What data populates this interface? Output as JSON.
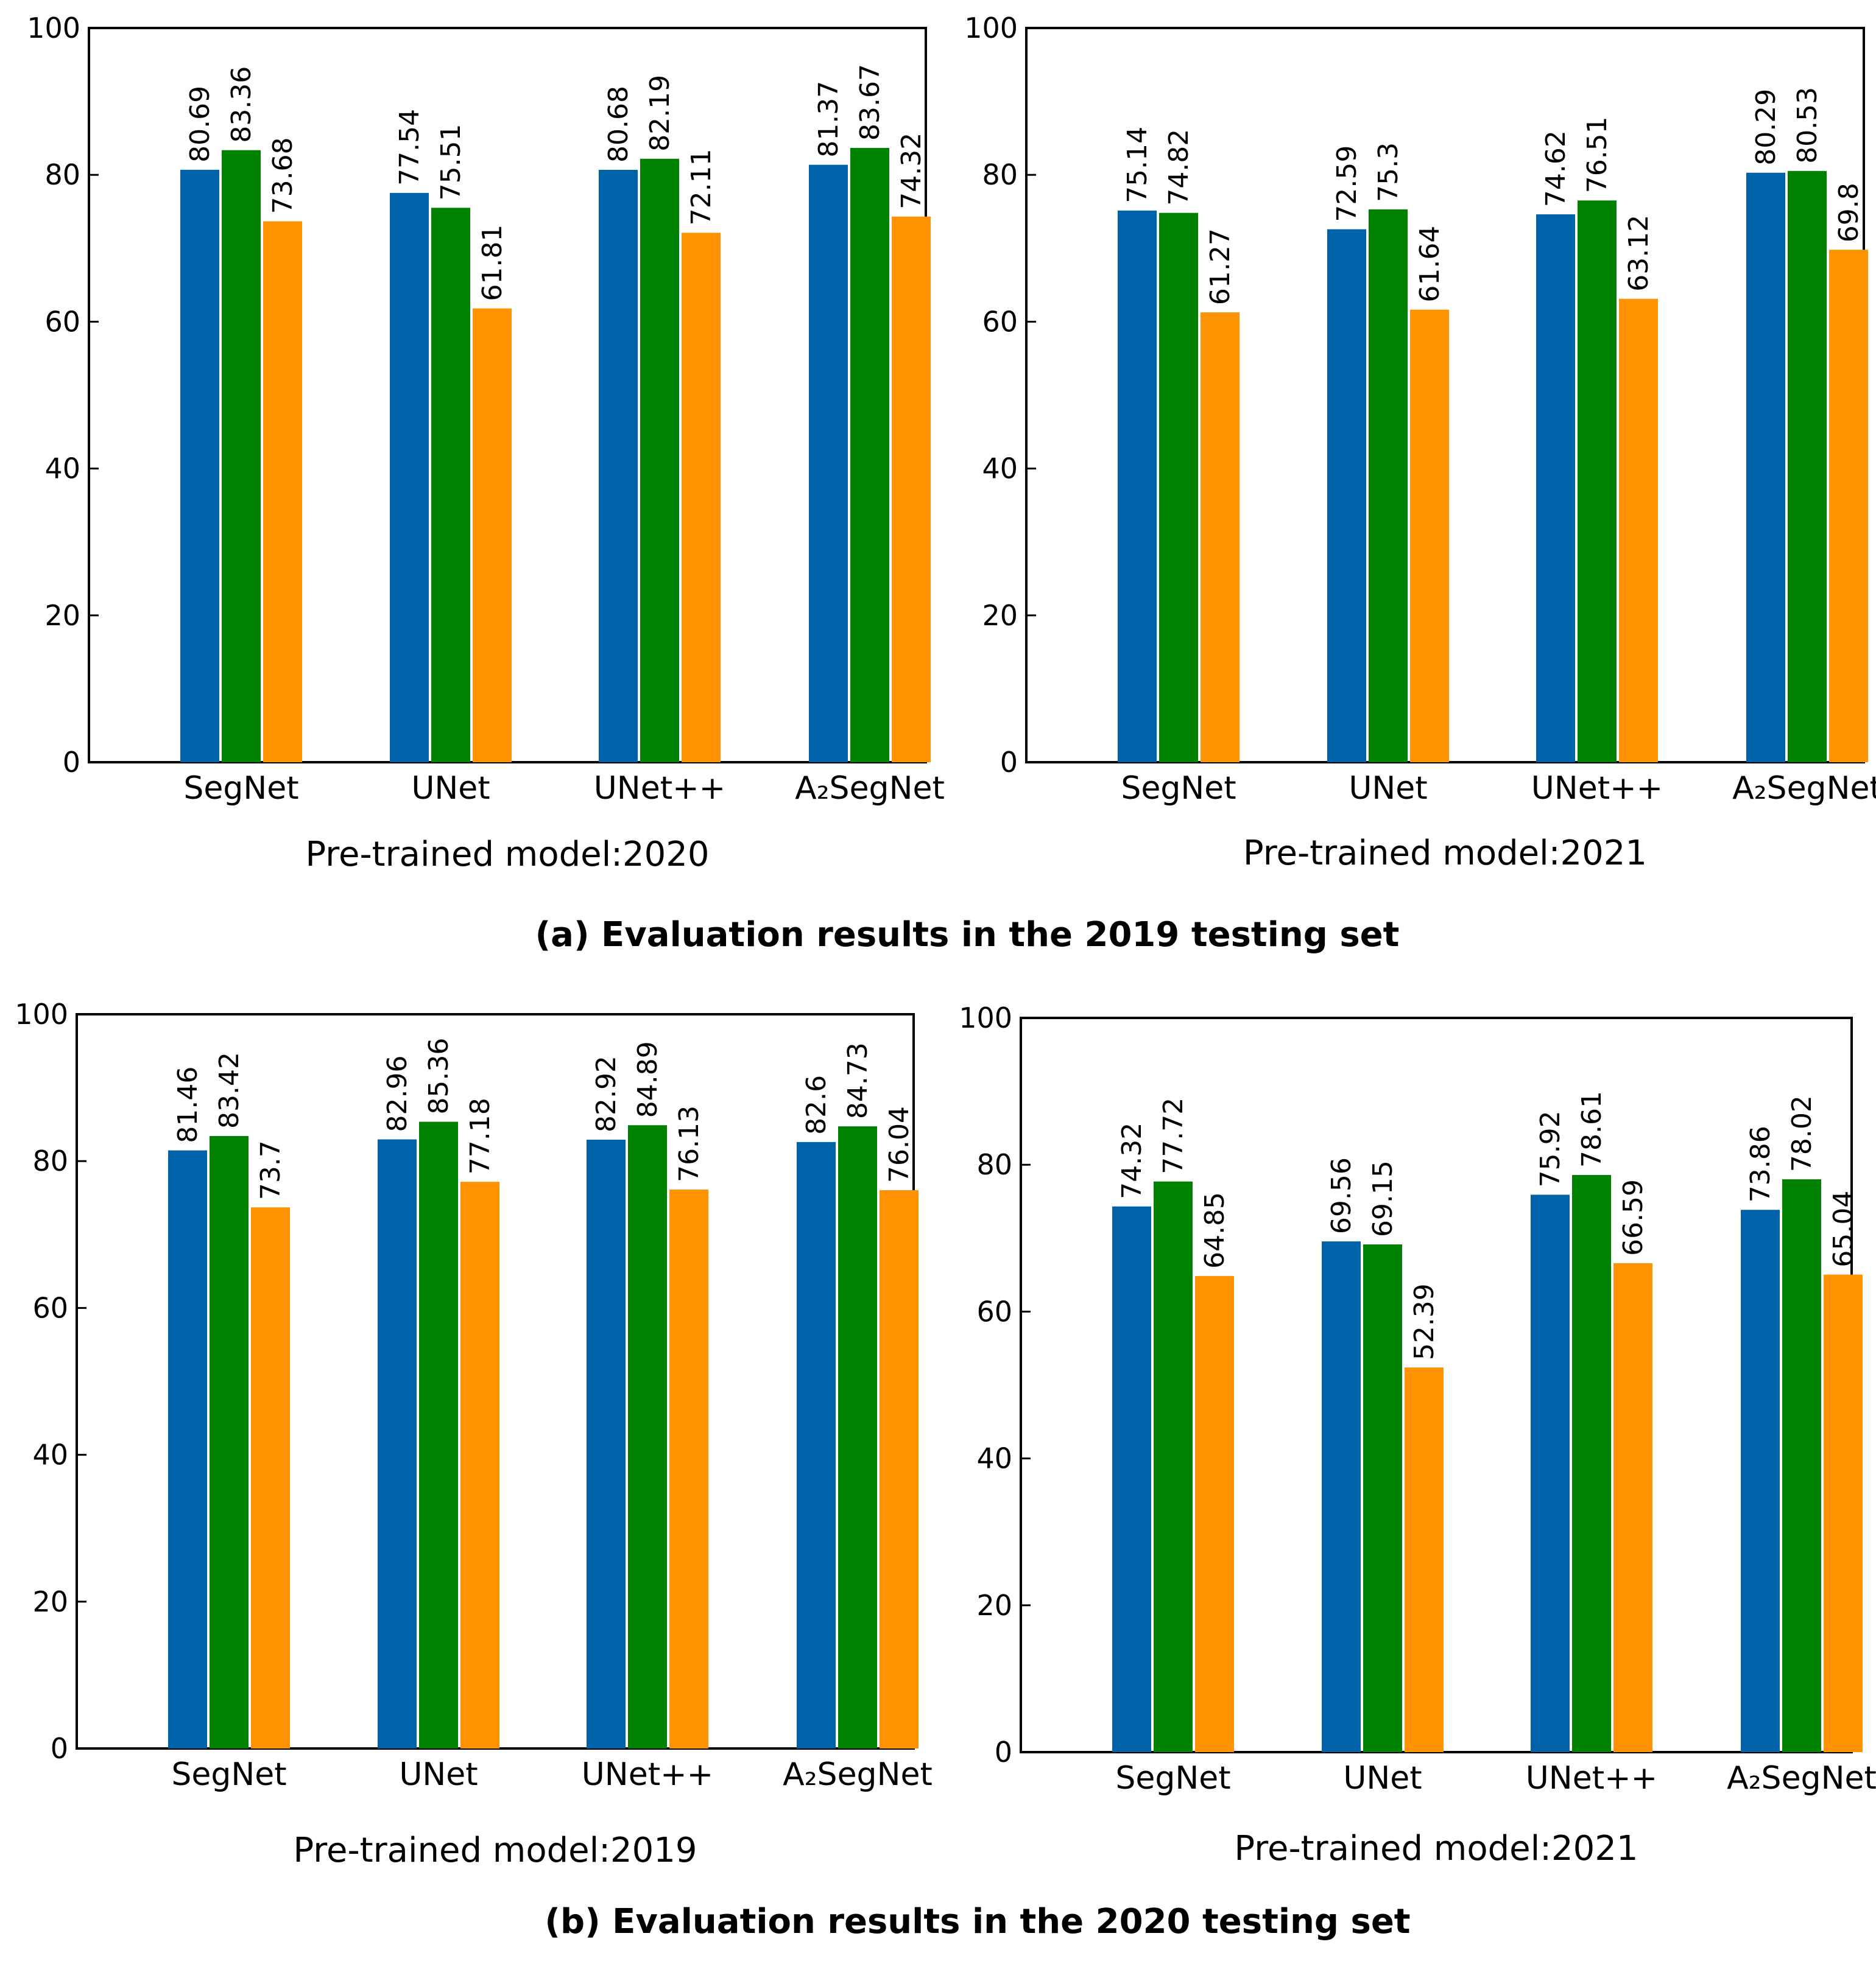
{
  "colors": {
    "series1": "#0062a8",
    "series2": "#008100",
    "series3": "#ff9200"
  },
  "captions": {
    "a": "(a) Evaluation results in the 2019 testing set",
    "b": "(b) Evaluation results in the 2020 testing set"
  },
  "chart_data": [
    {
      "type": "bar",
      "title": "Pre-trained model:2020",
      "categories": [
        "SegNet",
        "UNet",
        "UNet++",
        "A₂SegNet"
      ],
      "series": [
        {
          "name": "series 1",
          "values": [
            80.69,
            77.54,
            80.68,
            81.37
          ]
        },
        {
          "name": "series 2",
          "values": [
            83.36,
            75.51,
            82.19,
            83.67
          ]
        },
        {
          "name": "series 3",
          "values": [
            73.68,
            61.81,
            72.11,
            74.32
          ]
        }
      ],
      "ylim": [
        0,
        100
      ],
      "yticks": [
        "0",
        "20",
        "40",
        "60",
        "80",
        "100"
      ]
    },
    {
      "type": "bar",
      "title": "Pre-trained model:2021",
      "categories": [
        "SegNet",
        "UNet",
        "UNet++",
        "A₂SegNet"
      ],
      "series": [
        {
          "name": "series 1",
          "values": [
            75.14,
            72.59,
            74.62,
            80.29
          ]
        },
        {
          "name": "series 2",
          "values": [
            74.82,
            75.3,
            76.51,
            80.53
          ]
        },
        {
          "name": "series 3",
          "values": [
            61.27,
            61.64,
            63.12,
            69.8
          ]
        }
      ],
      "ylim": [
        0,
        100
      ],
      "yticks": [
        "0",
        "20",
        "40",
        "60",
        "80",
        "100"
      ]
    },
    {
      "type": "bar",
      "title": "Pre-trained model:2019",
      "categories": [
        "SegNet",
        "UNet",
        "UNet++",
        "A₂SegNet"
      ],
      "series": [
        {
          "name": "series 1",
          "values": [
            81.46,
            82.96,
            82.92,
            82.6
          ]
        },
        {
          "name": "series 2",
          "values": [
            83.42,
            85.36,
            84.89,
            84.73
          ]
        },
        {
          "name": "series 3",
          "values": [
            73.7,
            77.18,
            76.13,
            76.04
          ]
        }
      ],
      "ylim": [
        0,
        100
      ],
      "yticks": [
        "0",
        "20",
        "40",
        "60",
        "80",
        "100"
      ]
    },
    {
      "type": "bar",
      "title": "Pre-trained model:2021",
      "categories": [
        "SegNet",
        "UNet",
        "UNet++",
        "A₂SegNet"
      ],
      "series": [
        {
          "name": "series 1",
          "values": [
            74.32,
            69.56,
            75.92,
            73.86
          ]
        },
        {
          "name": "series 2",
          "values": [
            77.72,
            69.15,
            78.61,
            78.02
          ]
        },
        {
          "name": "series 3",
          "values": [
            64.85,
            52.39,
            66.59,
            65.04
          ]
        }
      ],
      "ylim": [
        0,
        100
      ],
      "yticks": [
        "0",
        "20",
        "40",
        "60",
        "80",
        "100"
      ]
    }
  ]
}
